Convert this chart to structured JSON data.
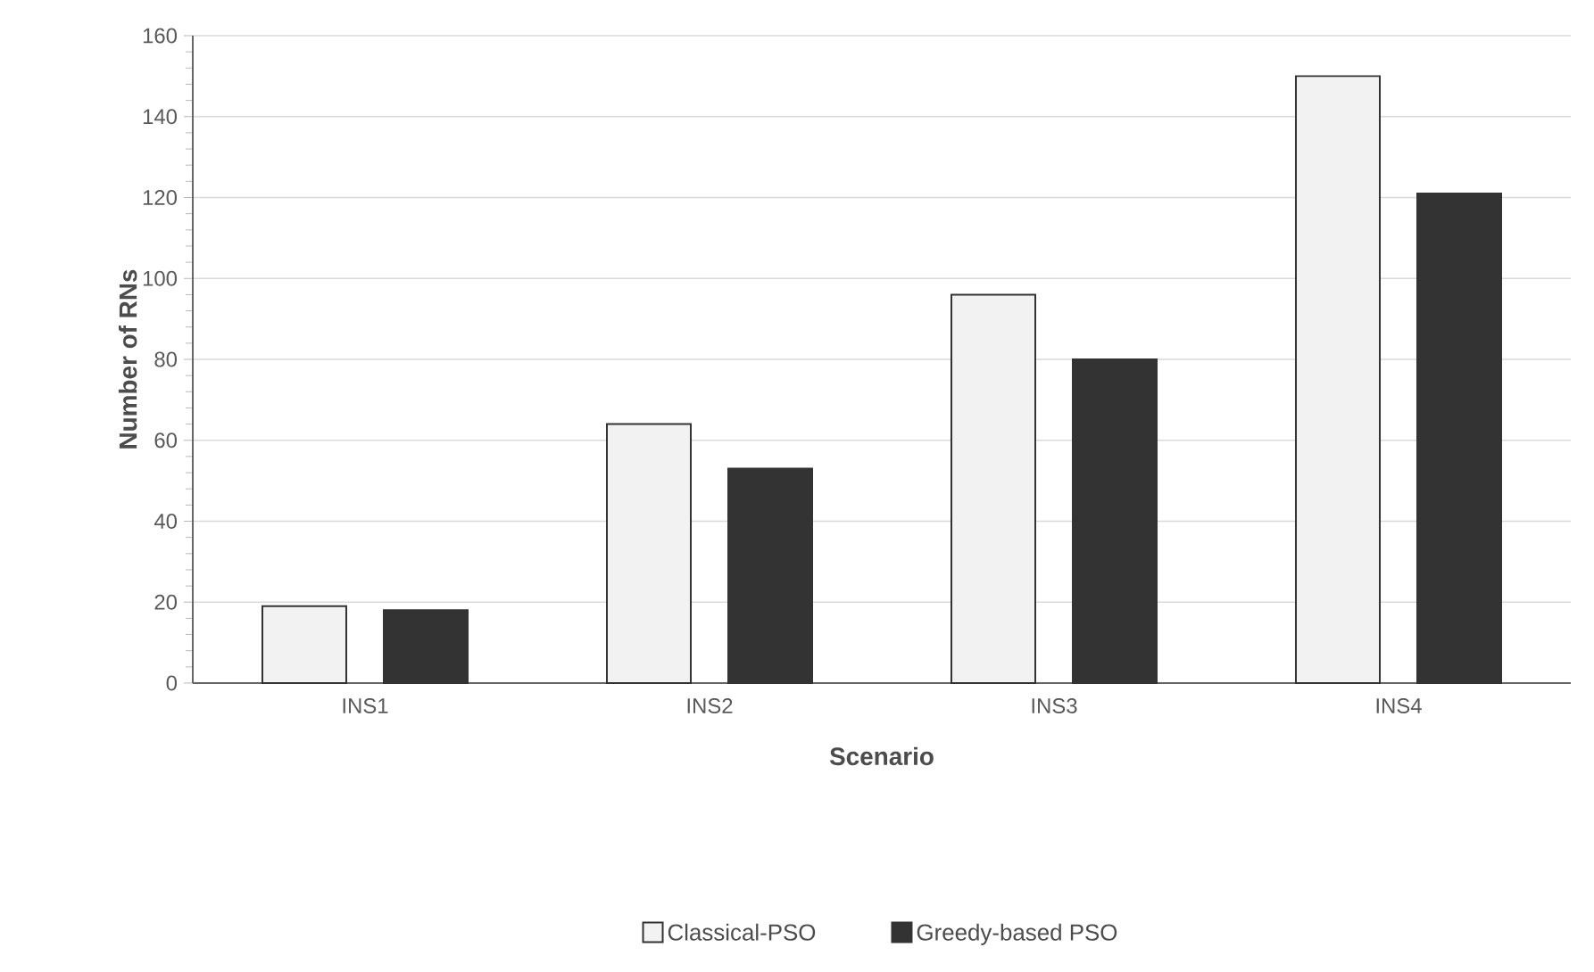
{
  "chart_data": {
    "type": "bar",
    "xlabel": "Scenario",
    "ylabel": "Number of RNs",
    "categories": [
      "INS1",
      "INS2",
      "INS3",
      "INS4"
    ],
    "series": [
      {
        "name": "Classical-PSO",
        "color": "#f2f2f2",
        "values": [
          19,
          64,
          96,
          150
        ]
      },
      {
        "name": "Greedy-based PSO",
        "color": "#333333",
        "values": [
          18,
          53,
          80,
          121
        ]
      }
    ],
    "ylim": [
      0,
      160
    ],
    "yticks": [
      0,
      20,
      40,
      60,
      80,
      100,
      120,
      140,
      160
    ],
    "grid": "y",
    "legend": "bottom"
  }
}
